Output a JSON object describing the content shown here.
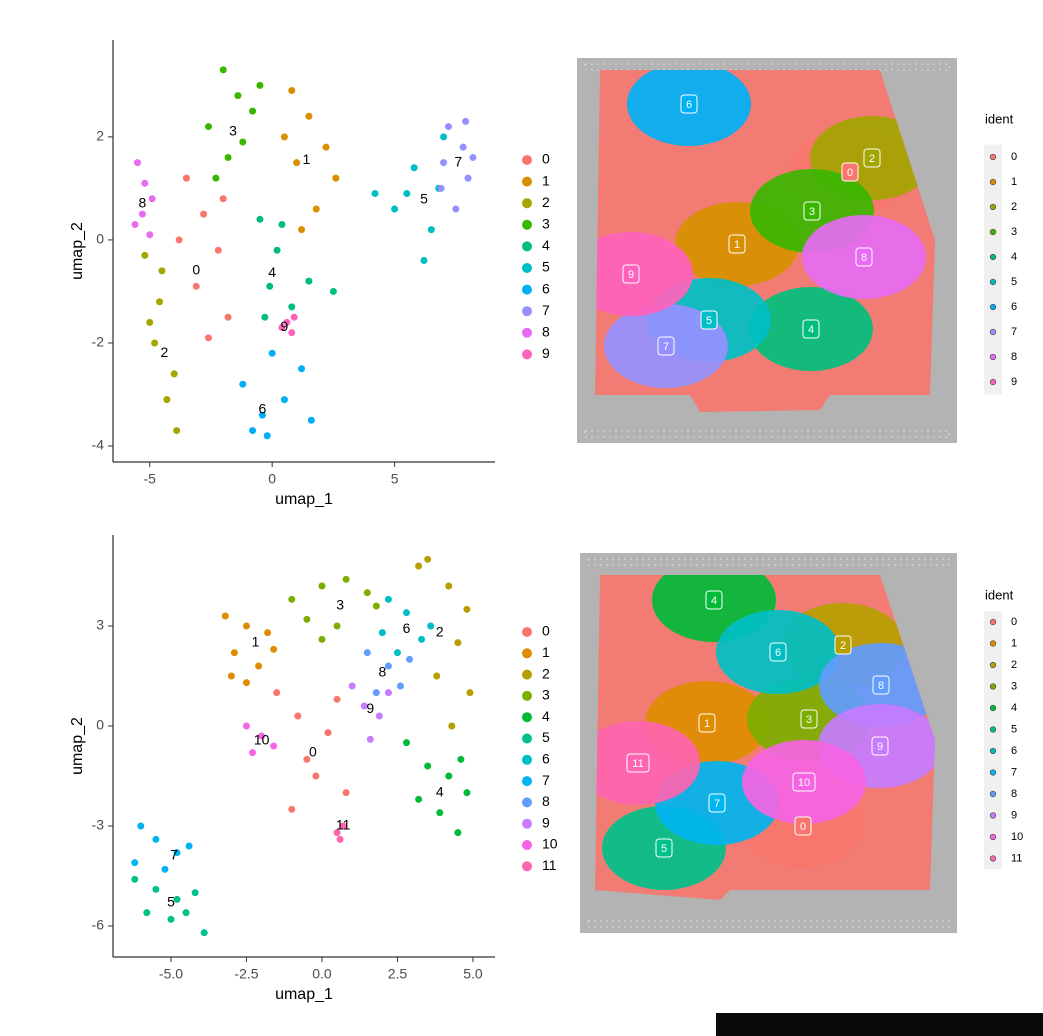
{
  "chart_data": [
    {
      "type": "scatter",
      "x_label": "umap_1",
      "y_label": "umap_2",
      "xlim": [
        -6.5,
        9.1
      ],
      "ylim": [
        -4.31,
        3.88
      ],
      "xticks": [
        -5,
        0,
        5
      ],
      "yticks": [
        -4,
        -2,
        0,
        2
      ],
      "series": [
        {
          "name": "0",
          "color": "#F8766D",
          "x": [
            -3.5,
            -2.8,
            -2.2,
            -3.1,
            -1.8,
            -2.6,
            -3.8,
            -2.0
          ],
          "y": [
            1.2,
            0.5,
            -0.2,
            -0.9,
            -1.5,
            -1.9,
            0.0,
            0.8
          ],
          "label_x": -3.1,
          "label_y": -0.6
        },
        {
          "name": "1",
          "color": "#D89000",
          "x": [
            0.8,
            1.5,
            2.2,
            1.0,
            2.6,
            1.8,
            0.5,
            1.2
          ],
          "y": [
            2.9,
            2.4,
            1.8,
            1.5,
            1.2,
            0.6,
            2.0,
            0.2
          ],
          "label_x": 1.4,
          "label_y": 1.55
        },
        {
          "name": "2",
          "color": "#A3A500",
          "x": [
            -5.2,
            -4.6,
            -4.8,
            -4.0,
            -4.3,
            -3.9,
            -5.0,
            -4.5
          ],
          "y": [
            -0.3,
            -1.2,
            -2.0,
            -2.6,
            -3.1,
            -3.7,
            -1.6,
            -0.6
          ],
          "label_x": -4.4,
          "label_y": -2.2
        },
        {
          "name": "3",
          "color": "#39B600",
          "x": [
            -2.0,
            -1.4,
            -2.6,
            -0.8,
            -1.8,
            -1.2,
            -0.5,
            -2.3
          ],
          "y": [
            3.3,
            2.8,
            2.2,
            2.5,
            1.6,
            1.9,
            3.0,
            1.2
          ],
          "label_x": -1.6,
          "label_y": 2.1
        },
        {
          "name": "4",
          "color": "#00BF7D",
          "x": [
            -0.5,
            0.2,
            -0.1,
            0.8,
            0.4,
            1.5,
            2.5,
            -0.3
          ],
          "y": [
            0.4,
            -0.2,
            -0.9,
            -1.3,
            0.3,
            -0.8,
            -1.0,
            -1.5
          ],
          "label_x": 0,
          "label_y": -0.65
        },
        {
          "name": "5",
          "color": "#00BFC4",
          "x": [
            4.2,
            5.0,
            5.8,
            6.5,
            6.2,
            7.0,
            5.5,
            6.8
          ],
          "y": [
            0.9,
            0.6,
            1.4,
            0.2,
            -0.4,
            2.0,
            0.9,
            1.0
          ],
          "label_x": 6.2,
          "label_y": 0.78
        },
        {
          "name": "6",
          "color": "#00B0F6",
          "x": [
            -1.2,
            -0.4,
            0.5,
            1.2,
            -0.8,
            0.0,
            1.6,
            -0.2
          ],
          "y": [
            -2.8,
            -3.4,
            -3.1,
            -2.5,
            -3.7,
            -2.2,
            -3.5,
            -3.8
          ],
          "label_x": -0.4,
          "label_y": -3.3
        },
        {
          "name": "7",
          "color": "#9590FF",
          "x": [
            7.2,
            7.8,
            8.0,
            6.9,
            7.5,
            7.9,
            7.0,
            8.2
          ],
          "y": [
            2.2,
            1.8,
            1.2,
            1.0,
            0.6,
            2.3,
            1.5,
            1.6
          ],
          "label_x": 7.6,
          "label_y": 1.5
        },
        {
          "name": "8",
          "color": "#E76BF3",
          "x": [
            -5.5,
            -5.2,
            -4.9,
            -5.6,
            -5.0,
            -5.3
          ],
          "y": [
            1.5,
            1.1,
            0.8,
            0.3,
            0.1,
            0.5
          ],
          "label_x": -5.3,
          "label_y": 0.7
        },
        {
          "name": "9",
          "color": "#FF62BC",
          "x": [
            0.6,
            0.8,
            0.4,
            0.9
          ],
          "y": [
            -1.6,
            -1.8,
            -1.7,
            -1.5
          ],
          "label_x": 0.5,
          "label_y": -1.7
        }
      ]
    },
    {
      "type": "spatial",
      "legend_title": "ident",
      "categories": [
        "0",
        "1",
        "2",
        "3",
        "4",
        "5",
        "6",
        "7",
        "8",
        "9"
      ],
      "colors": [
        "#F8766D",
        "#D89000",
        "#A3A500",
        "#39B600",
        "#00BF7D",
        "#00BFC4",
        "#00B0F6",
        "#9590FF",
        "#E76BF3",
        "#FF62BC"
      ]
    },
    {
      "type": "scatter",
      "x_label": "umap_1",
      "y_label": "umap_2",
      "xlim": [
        -6.92,
        5.73
      ],
      "ylim": [
        -6.93,
        5.73
      ],
      "xticks": [
        {
          "value": -5,
          "label": "-5.0"
        },
        {
          "value": -2.5,
          "label": "-2.5"
        },
        {
          "value": 0,
          "label": "0.0"
        },
        {
          "value": 2.5,
          "label": "2.5"
        },
        {
          "value": 5,
          "label": "5.0"
        }
      ],
      "yticks": [
        -6,
        -3,
        0,
        3
      ],
      "series": [
        {
          "name": "0",
          "color": "#F8766D",
          "x": [
            -1.5,
            -0.8,
            0.2,
            -0.2,
            0.8,
            -1.0,
            0.5,
            -0.5
          ],
          "y": [
            1.0,
            0.3,
            -0.2,
            -1.5,
            -2.0,
            -2.5,
            0.8,
            -1.0
          ],
          "label_x": -0.3,
          "label_y": -0.8
        },
        {
          "name": "1",
          "color": "#DE8C00",
          "x": [
            -3.2,
            -2.5,
            -1.8,
            -2.9,
            -2.1,
            -3.0,
            -1.6,
            -2.5
          ],
          "y": [
            3.3,
            3.0,
            2.8,
            2.2,
            1.8,
            1.5,
            2.3,
            1.3
          ],
          "label_x": -2.2,
          "label_y": 2.5
        },
        {
          "name": "2",
          "color": "#B79F00",
          "x": [
            3.5,
            4.2,
            4.8,
            4.5,
            3.8,
            4.9,
            4.3,
            3.2
          ],
          "y": [
            5.0,
            4.2,
            3.5,
            2.5,
            1.5,
            1.0,
            0.0,
            4.8
          ],
          "label_x": 3.9,
          "label_y": 2.8
        },
        {
          "name": "3",
          "color": "#7CAE00",
          "x": [
            -1.0,
            0.0,
            0.8,
            1.5,
            -0.5,
            0.5,
            1.8,
            0.0
          ],
          "y": [
            3.8,
            4.2,
            4.4,
            4.0,
            3.2,
            3.0,
            3.6,
            2.6
          ],
          "label_x": 0.6,
          "label_y": 3.6
        },
        {
          "name": "4",
          "color": "#00BA38",
          "x": [
            2.8,
            3.5,
            4.2,
            4.8,
            3.9,
            4.5,
            3.2,
            4.6
          ],
          "y": [
            -0.5,
            -1.2,
            -1.5,
            -2.0,
            -2.6,
            -3.2,
            -2.2,
            -1.0
          ],
          "label_x": 3.9,
          "label_y": -2.0
        },
        {
          "name": "5",
          "color": "#00C08B",
          "x": [
            -6.2,
            -5.5,
            -4.8,
            -4.2,
            -5.8,
            -5.0,
            -4.5,
            -3.9
          ],
          "y": [
            -4.6,
            -4.9,
            -5.2,
            -5.0,
            -5.6,
            -5.8,
            -5.6,
            -6.2
          ],
          "label_x": -5.0,
          "label_y": -5.3
        },
        {
          "name": "6",
          "color": "#00BFC4",
          "x": [
            2.2,
            2.8,
            3.3,
            2.5,
            3.6,
            2.0
          ],
          "y": [
            3.8,
            3.4,
            2.6,
            2.2,
            3.0,
            2.8
          ],
          "label_x": 2.8,
          "label_y": 2.9
        },
        {
          "name": "7",
          "color": "#00B4F0",
          "x": [
            -6.0,
            -5.5,
            -4.8,
            -5.2,
            -4.4,
            -6.2
          ],
          "y": [
            -3.0,
            -3.4,
            -3.8,
            -4.3,
            -3.6,
            -4.1
          ],
          "label_x": -4.9,
          "label_y": -3.9
        },
        {
          "name": "8",
          "color": "#619CFF",
          "x": [
            1.5,
            2.2,
            2.6,
            1.8,
            2.9
          ],
          "y": [
            2.2,
            1.8,
            1.2,
            1.0,
            2.0
          ],
          "label_x": 2.0,
          "label_y": 1.6
        },
        {
          "name": "9",
          "color": "#C77CFF",
          "x": [
            1.0,
            1.4,
            1.9,
            1.6,
            2.2
          ],
          "y": [
            1.2,
            0.6,
            0.3,
            -0.4,
            1.0
          ],
          "label_x": 1.6,
          "label_y": 0.5
        },
        {
          "name": "10",
          "color": "#F564E3",
          "x": [
            -2.5,
            -2.0,
            -1.6,
            -2.3
          ],
          "y": [
            0.0,
            -0.3,
            -0.6,
            -0.8
          ],
          "label_x": -2.0,
          "label_y": -0.45
        },
        {
          "name": "11",
          "color": "#FF64B0",
          "x": [
            0.5,
            0.7,
            0.6
          ],
          "y": [
            -3.2,
            -3.0,
            -3.4
          ],
          "label_x": 0.7,
          "label_y": -3.0
        }
      ]
    },
    {
      "type": "spatial",
      "legend_title": "ident",
      "categories": [
        "0",
        "1",
        "2",
        "3",
        "4",
        "5",
        "6",
        "7",
        "8",
        "9",
        "10",
        "11"
      ],
      "colors": [
        "#F8766D",
        "#DE8C00",
        "#B79F00",
        "#7CAE00",
        "#00BA38",
        "#00C08B",
        "#00BFC4",
        "#00B4F0",
        "#619CFF",
        "#C77CFF",
        "#F564E3",
        "#FF64B0"
      ]
    }
  ]
}
